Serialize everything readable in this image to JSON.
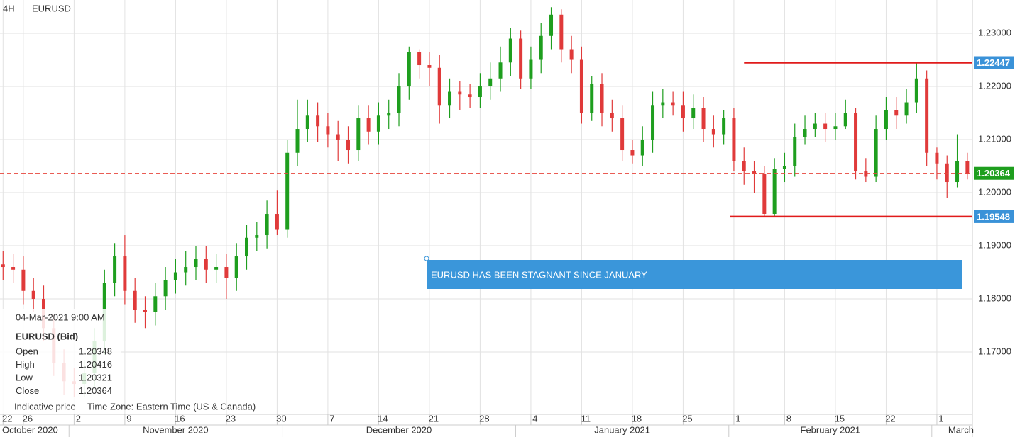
{
  "header": {
    "timeframe": "4H",
    "symbol": "EURUSD"
  },
  "chart_data": {
    "type": "candlestick",
    "x": [
      0,
      1,
      2,
      3,
      4,
      5,
      6,
      7,
      8,
      9,
      10,
      11,
      12,
      13,
      14,
      15,
      16,
      17,
      18,
      19,
      20,
      21,
      22,
      23,
      24,
      25,
      26,
      27,
      28,
      29,
      30,
      31,
      32,
      33,
      34,
      35,
      36,
      37,
      38,
      39,
      40,
      41,
      42,
      43,
      44,
      45,
      46,
      47,
      48,
      49,
      50,
      51,
      52,
      53,
      54,
      55,
      56,
      57,
      58,
      59,
      60,
      61,
      62,
      63,
      64,
      65,
      66,
      67,
      68,
      69,
      70,
      71,
      72,
      73,
      74,
      75,
      76,
      77,
      78,
      79,
      80,
      81,
      82,
      83,
      84,
      85,
      86,
      87,
      88,
      89,
      90,
      91,
      92,
      93,
      94,
      95
    ],
    "open": [
      1.1865,
      1.186,
      1.1855,
      1.1815,
      1.18,
      1.1745,
      1.168,
      1.1645,
      1.164,
      1.166,
      1.172,
      1.183,
      1.188,
      1.1815,
      1.178,
      1.1775,
      1.1805,
      1.1835,
      1.185,
      1.186,
      1.1875,
      1.1855,
      1.186,
      1.184,
      1.188,
      1.1915,
      1.192,
      1.196,
      1.193,
      1.2075,
      1.212,
      1.2145,
      1.2125,
      1.211,
      1.21,
      1.208,
      1.214,
      1.2115,
      1.2145,
      1.215,
      1.22,
      1.2265,
      1.224,
      1.2235,
      1.2165,
      1.219,
      1.2185,
      1.218,
      1.22,
      1.2215,
      1.2245,
      1.229,
      1.2215,
      1.225,
      1.2295,
      1.2335,
      1.227,
      1.225,
      1.215,
      1.2205,
      1.215,
      1.214,
      1.208,
      1.207,
      1.21,
      1.2165,
      1.217,
      1.2165,
      1.214,
      1.216,
      1.212,
      1.211,
      1.214,
      1.206,
      1.204,
      1.2035,
      1.196,
      1.2045,
      1.205,
      1.2105,
      1.212,
      1.213,
      1.212,
      1.2125,
      1.215,
      1.204,
      1.203,
      1.212,
      1.2155,
      1.2145,
      1.217,
      1.2215,
      1.2075,
      1.2055,
      1.202,
      1.206
    ],
    "high": [
      1.189,
      1.1885,
      1.188,
      1.184,
      1.1825,
      1.177,
      1.1705,
      1.167,
      1.1685,
      1.1745,
      1.1855,
      1.1905,
      1.192,
      1.184,
      1.1805,
      1.183,
      1.186,
      1.1875,
      1.189,
      1.19,
      1.19,
      1.1885,
      1.1885,
      1.1905,
      1.194,
      1.1945,
      1.1985,
      1.2005,
      1.21,
      1.2175,
      1.2175,
      1.217,
      1.215,
      1.2135,
      1.2125,
      1.2165,
      1.2165,
      1.217,
      1.2175,
      1.2225,
      1.2275,
      1.227,
      1.2265,
      1.226,
      1.2215,
      1.221,
      1.2205,
      1.2225,
      1.2245,
      1.2275,
      1.231,
      1.2305,
      1.2275,
      1.232,
      1.2349,
      1.2345,
      1.2295,
      1.2275,
      1.222,
      1.2225,
      1.2175,
      1.2165,
      1.21,
      1.2125,
      1.219,
      1.2195,
      1.219,
      1.219,
      1.2185,
      1.218,
      1.2145,
      1.2155,
      1.216,
      1.2085,
      1.206,
      1.205,
      1.2065,
      1.2075,
      1.213,
      1.2145,
      1.215,
      1.215,
      1.215,
      1.2175,
      1.216,
      1.2065,
      1.2145,
      1.218,
      1.218,
      1.2195,
      1.22447,
      1.223,
      1.2085,
      1.207,
      1.211,
      1.2075
    ],
    "low": [
      1.1835,
      1.183,
      1.179,
      1.1775,
      1.172,
      1.1655,
      1.162,
      1.1615,
      1.1615,
      1.1635,
      1.1695,
      1.1805,
      1.179,
      1.1755,
      1.1745,
      1.175,
      1.178,
      1.181,
      1.1825,
      1.1835,
      1.183,
      1.183,
      1.18,
      1.1815,
      1.1855,
      1.189,
      1.1895,
      1.192,
      1.1915,
      1.205,
      1.2095,
      1.2095,
      1.2085,
      1.206,
      1.2055,
      1.206,
      1.209,
      1.209,
      1.212,
      1.2125,
      1.2175,
      1.2215,
      1.22,
      1.213,
      1.214,
      1.2155,
      1.216,
      1.216,
      1.2175,
      1.219,
      1.222,
      1.2195,
      1.2195,
      1.2225,
      1.227,
      1.2245,
      1.2225,
      1.213,
      1.2135,
      1.2125,
      1.2115,
      1.206,
      1.2055,
      1.205,
      1.2075,
      1.214,
      1.2145,
      1.2115,
      1.212,
      1.2095,
      1.2085,
      1.209,
      1.204,
      1.2015,
      1.2,
      1.19548,
      1.1955,
      1.202,
      1.203,
      1.209,
      1.2105,
      1.2095,
      1.21,
      1.212,
      1.2025,
      1.202,
      1.202,
      1.21,
      1.212,
      1.213,
      1.215,
      1.205,
      1.2025,
      1.199,
      1.201,
      1.2025
    ],
    "close": [
      1.186,
      1.1855,
      1.1815,
      1.18,
      1.1745,
      1.168,
      1.1645,
      1.164,
      1.166,
      1.172,
      1.183,
      1.188,
      1.1815,
      1.178,
      1.1775,
      1.1805,
      1.1835,
      1.185,
      1.186,
      1.1875,
      1.1855,
      1.186,
      1.184,
      1.188,
      1.1915,
      1.192,
      1.196,
      1.193,
      1.2075,
      1.212,
      1.2145,
      1.2125,
      1.211,
      1.21,
      1.208,
      1.214,
      1.2115,
      1.2145,
      1.215,
      1.22,
      1.2265,
      1.224,
      1.2235,
      1.2165,
      1.219,
      1.2185,
      1.218,
      1.22,
      1.2215,
      1.2245,
      1.229,
      1.2215,
      1.225,
      1.2295,
      1.2335,
      1.227,
      1.225,
      1.215,
      1.2205,
      1.215,
      1.214,
      1.208,
      1.207,
      1.21,
      1.2165,
      1.217,
      1.2165,
      1.214,
      1.216,
      1.212,
      1.211,
      1.214,
      1.206,
      1.204,
      1.2035,
      1.196,
      1.2045,
      1.205,
      1.2105,
      1.212,
      1.213,
      1.212,
      1.2125,
      1.215,
      1.204,
      1.203,
      1.212,
      1.2155,
      1.2145,
      1.217,
      1.2215,
      1.2075,
      1.2055,
      1.202,
      1.206,
      1.20364
    ],
    "up_color": "#1e9e1e",
    "down_color": "#e03a3a",
    "xlim": [
      -0.3,
      95.5
    ],
    "ylim": [
      1.15827,
      1.23627
    ],
    "yticks": [
      {
        "value": 1.17,
        "label": "1.17000"
      },
      {
        "value": 1.18,
        "label": "1.18000"
      },
      {
        "value": 1.19,
        "label": "1.19000"
      },
      {
        "value": 1.2,
        "label": "1.20000"
      },
      {
        "value": 1.21,
        "label": "1.21000"
      },
      {
        "value": 1.22,
        "label": "1.22000"
      },
      {
        "value": 1.23,
        "label": "1.23000"
      }
    ],
    "xticks": [
      {
        "value": 0,
        "label": "22"
      },
      {
        "value": 2,
        "label": "26"
      },
      {
        "value": 7,
        "label": "2"
      },
      {
        "value": 12,
        "label": "9"
      },
      {
        "value": 17,
        "label": "16"
      },
      {
        "value": 22,
        "label": "23"
      },
      {
        "value": 27,
        "label": "30"
      },
      {
        "value": 32,
        "label": "7"
      },
      {
        "value": 37,
        "label": "14"
      },
      {
        "value": 42,
        "label": "21"
      },
      {
        "value": 47,
        "label": "28"
      },
      {
        "value": 52,
        "label": "4"
      },
      {
        "value": 57,
        "label": "11"
      },
      {
        "value": 62,
        "label": "18"
      },
      {
        "value": 67,
        "label": "25"
      },
      {
        "value": 72,
        "label": "1"
      },
      {
        "value": 77,
        "label": "8"
      },
      {
        "value": 82,
        "label": "15"
      },
      {
        "value": 87,
        "label": "22"
      },
      {
        "value": 92,
        "label": "1"
      }
    ],
    "months": [
      {
        "value": 0,
        "label": "October 2020"
      },
      {
        "value": 7,
        "label": "November 2020"
      },
      {
        "value": 28,
        "label": "December 2020"
      },
      {
        "value": 51,
        "label": "January 2021"
      },
      {
        "value": 72,
        "label": "February 2021"
      },
      {
        "value": 92,
        "label": "March"
      }
    ],
    "grid": true,
    "current_price": {
      "value": 1.20364,
      "color": "#1e9e1e",
      "line_color": "#e8453c"
    },
    "levels": [
      {
        "value": 1.22447,
        "x_start": 73,
        "color": "#e01b1b",
        "tag_color": "#3a92d8"
      },
      {
        "value": 1.19548,
        "x_start": 71.6,
        "color": "#e01b1b",
        "tag_color": "#3a92d8"
      }
    ],
    "annotation": {
      "text": "EURUSD HAS BEEN STAGNANT SINCE JANUARY",
      "color": "#3a96da"
    }
  },
  "tooltip": {
    "datetime": "04-Mar-2021 9:00 AM",
    "symbol": "EURUSD (Bid)",
    "rows": [
      [
        "Open",
        1.20348
      ],
      [
        "High",
        1.20416
      ],
      [
        "Low",
        1.20321
      ],
      [
        "Close",
        1.20364
      ]
    ],
    "note": "Indicative price",
    "timezone": "Time Zone: Eastern Time (US & Canada)"
  }
}
